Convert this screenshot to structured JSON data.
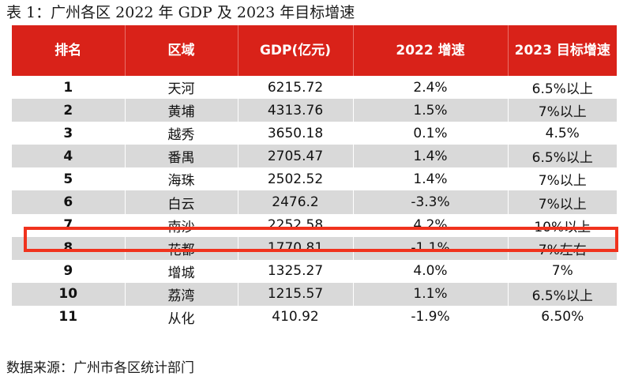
{
  "caption": "表 1：广州各区 2022 年 GDP 及 2023 年目标增速",
  "table": {
    "headers": [
      "排名",
      "区域",
      "GDP(亿元)",
      "2022 增速",
      "2023 目标增速"
    ],
    "rows": [
      [
        "1",
        "天河",
        "6215.72",
        "2.4%",
        "6.5%以上"
      ],
      [
        "2",
        "黄埔",
        "4313.76",
        "1.5%",
        "7%以上"
      ],
      [
        "3",
        "越秀",
        "3650.18",
        "0.1%",
        "4.5%"
      ],
      [
        "4",
        "番禺",
        "2705.47",
        "1.4%",
        "6.5%以上"
      ],
      [
        "5",
        "海珠",
        "2502.52",
        "1.4%",
        "7%以上"
      ],
      [
        "6",
        "白云",
        "2476.2",
        "-3.3%",
        "7%以上"
      ],
      [
        "7",
        "南沙",
        "2252.58",
        "4.2%",
        "10%以上"
      ],
      [
        "8",
        "花都",
        "1770.81",
        "-1.1%",
        "7%左右"
      ],
      [
        "9",
        "增城",
        "1325.27",
        "4.0%",
        "7%"
      ],
      [
        "10",
        "荔湾",
        "1215.57",
        "1.1%",
        "6.5%以上"
      ],
      [
        "11",
        "从化",
        "410.92",
        "-1.9%",
        "6.50%"
      ]
    ],
    "highlighted_row": "7"
  },
  "source": "数据来源：广州市各区统计部门",
  "colors": {
    "header_bg": "#d92219",
    "stripe_bg": "#d9d9d9",
    "highlight_border": "#f0321d"
  }
}
